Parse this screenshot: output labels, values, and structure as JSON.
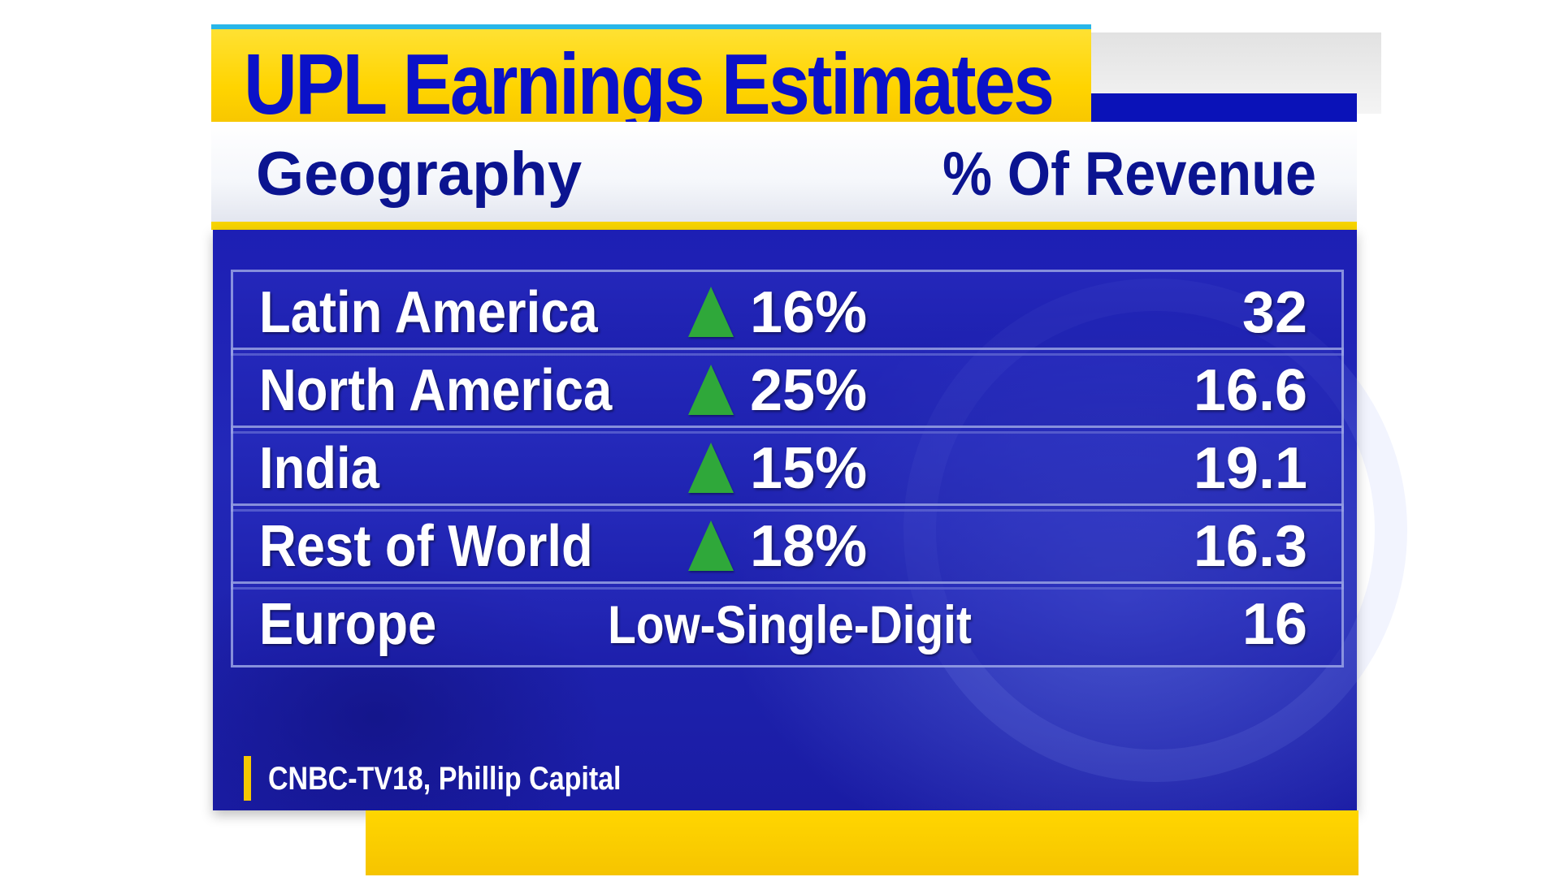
{
  "title": "UPL Earnings Estimates",
  "header": {
    "left": "Geography",
    "right": "% Of Revenue"
  },
  "rows": [
    {
      "region": "Latin America",
      "growth": "16%",
      "indicator": "up-arrow-icon",
      "value": "32"
    },
    {
      "region": "North America",
      "growth": "25%",
      "indicator": "up-arrow-icon",
      "value": "16.6"
    },
    {
      "region": "India",
      "growth": "15%",
      "indicator": "up-arrow-icon",
      "value": "19.1"
    },
    {
      "region": "Rest of World",
      "growth": "18%",
      "indicator": "up-arrow-icon",
      "value": "16.3"
    },
    {
      "region": "Europe",
      "growth": "Low-Single-Digit",
      "indicator": null,
      "value": "16"
    }
  ],
  "source": "CNBC-TV18, Phillip Capital",
  "colors": {
    "title_bg": "#ffd400",
    "title_text": "#0b12c8",
    "panel_bg": "#1d1fb4",
    "arrow": "#2fa83a",
    "accent_yellow": "#f6c800"
  }
}
